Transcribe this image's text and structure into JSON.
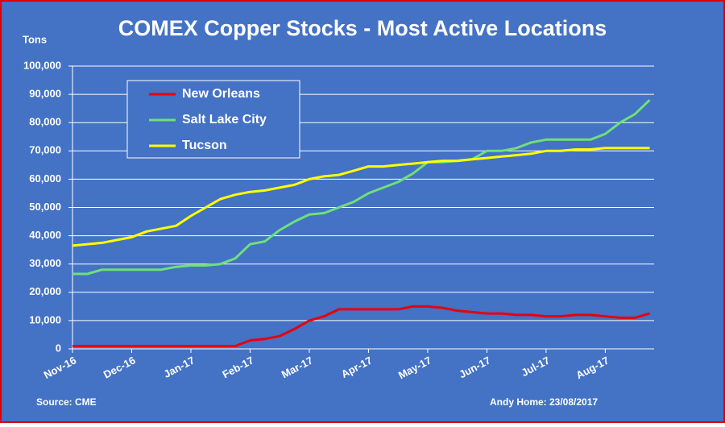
{
  "chart_data": {
    "type": "line",
    "title": "COMEX Copper Stocks - Most Active Locations",
    "y_label": "Tons",
    "source": "Source: CME",
    "credit": "Andy Home: 23/08/2017",
    "categories": [
      "Nov-16",
      null,
      null,
      null,
      "Dec-16",
      null,
      null,
      null,
      "Jan-17",
      null,
      null,
      null,
      "Feb-17",
      null,
      null,
      null,
      "Mar-17",
      null,
      null,
      null,
      "Apr-17",
      null,
      null,
      null,
      "May-17",
      null,
      null,
      null,
      "Jun-17",
      null,
      null,
      null,
      "Jul-17",
      null,
      null,
      null,
      "Aug-17",
      null,
      null,
      null
    ],
    "series": [
      {
        "name": "New Orleans",
        "color": "#e8000b",
        "values": [
          1000,
          1000,
          1000,
          1000,
          1000,
          1000,
          1000,
          1000,
          1000,
          1000,
          1000,
          1000,
          3000,
          3500,
          4500,
          7000,
          10000,
          11500,
          14000,
          14000,
          14000,
          14000,
          14000,
          15000,
          15000,
          14500,
          13500,
          13000,
          12500,
          12500,
          12000,
          12000,
          11500,
          11500,
          12000,
          12000,
          11500,
          11000,
          11000,
          12500
        ]
      },
      {
        "name": "Salt Lake City",
        "color": "#6ee07a",
        "values": [
          26500,
          26500,
          28000,
          28000,
          28000,
          28000,
          28000,
          29000,
          29500,
          29500,
          30000,
          32000,
          37000,
          38000,
          42000,
          45000,
          47500,
          48000,
          50000,
          52000,
          55000,
          57000,
          59000,
          62000,
          66000,
          66000,
          66500,
          67000,
          70000,
          70000,
          71000,
          73000,
          74000,
          74000,
          74000,
          74000,
          76000,
          80000,
          83000,
          88000
        ]
      },
      {
        "name": "Tucson",
        "color": "#ffff00",
        "values": [
          36500,
          37000,
          37500,
          38500,
          39500,
          41500,
          42500,
          43500,
          47000,
          50000,
          53000,
          54500,
          55500,
          56000,
          57000,
          58000,
          60000,
          61000,
          61500,
          63000,
          64500,
          64500,
          65000,
          65500,
          66000,
          66500,
          66500,
          67000,
          67500,
          68000,
          68500,
          69000,
          70000,
          70000,
          70500,
          70500,
          71000,
          71000,
          71000,
          71000
        ]
      }
    ],
    "ylim": [
      0,
      100000
    ],
    "yticks": [
      0,
      {
        "value": 10000,
        "label": "10,000"
      },
      {
        "value": 20000,
        "label": "20,000"
      },
      {
        "value": 30000,
        "label": "30,000"
      },
      {
        "value": 40000,
        "label": "40,000"
      },
      {
        "value": 50000,
        "label": "50,000"
      },
      {
        "value": 60000,
        "label": "60,000"
      },
      {
        "value": 70000,
        "label": "70,000"
      },
      {
        "value": 80000,
        "label": "80,000"
      },
      {
        "value": 90000,
        "label": "90,000"
      },
      {
        "value": 100000,
        "label": "100,000"
      }
    ],
    "grid": true,
    "legend": "upper left"
  }
}
